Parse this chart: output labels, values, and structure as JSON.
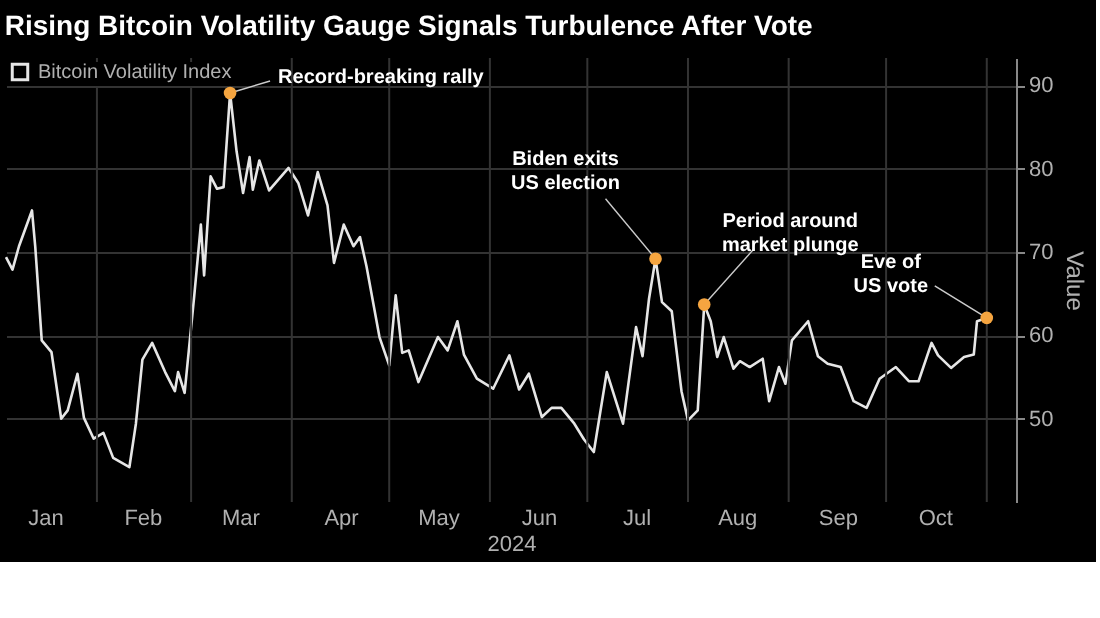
{
  "chart_data": {
    "type": "line",
    "title": "Rising Bitcoin Volatility Gauge Signals Turbulence After Vote",
    "xlabel": "2024",
    "ylabel": "Value",
    "legend": "top left",
    "grid": true,
    "marker": "none",
    "line_style": "solid",
    "xlim": [
      "2024-01-04",
      "2024-11-10"
    ],
    "ylim": [
      40,
      93.3
    ],
    "yticks": [
      50,
      60,
      70,
      80,
      90
    ],
    "xticks": [
      {
        "value": "2024-02-01",
        "label": null
      },
      {
        "value": "2024-03-01",
        "label": null
      },
      {
        "value": "2024-04-01",
        "label": null
      },
      {
        "value": "2024-05-01",
        "label": null
      },
      {
        "value": "2024-06-01",
        "label": null
      },
      {
        "value": "2024-07-01",
        "label": null
      },
      {
        "value": "2024-08-01",
        "label": null
      },
      {
        "value": "2024-09-01",
        "label": null
      },
      {
        "value": "2024-10-01",
        "label": null
      },
      {
        "value": "2024-11-01",
        "label": null
      },
      {
        "value": "2024-01-16",
        "label": "Jan"
      },
      {
        "value": "2024-02-15",
        "label": "Feb"
      },
      {
        "value": "2024-03-16",
        "label": "Mar"
      },
      {
        "value": "2024-04-16",
        "label": "Apr"
      },
      {
        "value": "2024-05-16",
        "label": "May"
      },
      {
        "value": "2024-06-16",
        "label": "Jun"
      },
      {
        "value": "2024-07-16",
        "label": "Jul"
      },
      {
        "value": "2024-08-16",
        "label": "Aug"
      },
      {
        "value": "2024-09-16",
        "label": "Sep"
      },
      {
        "value": "2024-10-16",
        "label": "Oct"
      }
    ],
    "x": [
      "2024-01-04",
      "2024-01-06",
      "2024-01-08",
      "2024-01-12",
      "2024-01-13",
      "2024-01-15",
      "2024-01-18",
      "2024-01-21",
      "2024-01-23",
      "2024-01-26",
      "2024-01-28",
      "2024-01-31",
      "2024-02-03",
      "2024-02-06",
      "2024-02-11",
      "2024-02-13",
      "2024-02-15",
      "2024-02-18",
      "2024-02-22",
      "2024-02-25",
      "2024-02-26",
      "2024-02-28",
      "2024-03-02",
      "2024-03-04",
      "2024-03-05",
      "2024-03-07",
      "2024-03-09",
      "2024-03-11",
      "2024-03-13",
      "2024-03-15",
      "2024-03-17",
      "2024-03-19",
      "2024-03-20",
      "2024-03-22",
      "2024-03-25",
      "2024-03-31",
      "2024-04-03",
      "2024-04-06",
      "2024-04-09",
      "2024-04-12",
      "2024-04-14",
      "2024-04-17",
      "2024-04-20",
      "2024-04-22",
      "2024-04-24",
      "2024-04-28",
      "2024-05-01",
      "2024-05-03",
      "2024-05-05",
      "2024-05-07",
      "2024-05-10",
      "2024-05-16",
      "2024-05-19",
      "2024-05-22",
      "2024-05-24",
      "2024-05-28",
      "2024-06-02",
      "2024-06-07",
      "2024-06-10",
      "2024-06-13",
      "2024-06-17",
      "2024-06-20",
      "2024-06-23",
      "2024-06-27",
      "2024-06-30",
      "2024-07-03",
      "2024-07-07",
      "2024-07-12",
      "2024-07-16",
      "2024-07-18",
      "2024-07-20",
      "2024-07-22",
      "2024-07-24",
      "2024-07-27",
      "2024-07-30",
      "2024-08-01",
      "2024-08-04",
      "2024-08-06",
      "2024-08-08",
      "2024-08-10",
      "2024-08-12",
      "2024-08-15",
      "2024-08-17",
      "2024-08-20",
      "2024-08-24",
      "2024-08-26",
      "2024-08-29",
      "2024-08-31",
      "2024-09-02",
      "2024-09-07",
      "2024-09-10",
      "2024-09-13",
      "2024-09-17",
      "2024-09-21",
      "2024-09-25",
      "2024-09-29",
      "2024-10-04",
      "2024-10-08",
      "2024-10-11",
      "2024-10-15",
      "2024-10-17",
      "2024-10-21",
      "2024-10-25",
      "2024-10-28",
      "2024-10-29",
      "2024-11-01"
    ],
    "series": [
      {
        "name": "Bitcoin Volatility Index",
        "color": "#e6e6e6",
        "values": [
          69.4,
          67.9,
          70.7,
          75,
          70.7,
          59.4,
          58,
          50,
          51,
          55.4,
          50.1,
          47.6,
          48.3,
          45.3,
          44.2,
          49.4,
          57.1,
          59.1,
          55.6,
          53.3,
          55.6,
          53.1,
          64.9,
          73.3,
          67.2,
          79.1,
          77.6,
          77.8,
          89.1,
          82.1,
          77.1,
          81.4,
          77.5,
          81,
          77.4,
          80.1,
          78.3,
          74.4,
          79.6,
          75.6,
          68.7,
          73.3,
          70.7,
          71.8,
          68.3,
          59.8,
          56.4,
          64.8,
          57.9,
          58.2,
          54.4,
          59.8,
          58.2,
          61.7,
          57.7,
          54.8,
          53.6,
          57.6,
          53.5,
          55.4,
          50.2,
          51.3,
          51.3,
          49.4,
          47.5,
          46,
          55.6,
          49.4,
          61,
          57.5,
          64.4,
          69.2,
          64,
          62.9,
          53.3,
          49.8,
          51,
          63.7,
          61.7,
          57.4,
          59.8,
          56,
          56.9,
          56.2,
          57.2,
          52.1,
          56.2,
          54.2,
          59.4,
          61.7,
          57.5,
          56.6,
          56.2,
          52.1,
          51.3,
          54.8,
          56.2,
          54.5,
          54.5,
          59.1,
          57.6,
          56.1,
          57.4,
          57.7,
          61.7,
          62.1
        ]
      }
    ],
    "annotations": [
      {
        "text": "Record-breaking rally",
        "x": "2024-03-13",
        "y": 89.1
      },
      {
        "text": "Biden exits\nUS election",
        "x": "2024-07-22",
        "y": 69.2
      },
      {
        "text": "Period around\nmarket plunge",
        "x": "2024-08-06",
        "y": 63.7
      },
      {
        "text": "Eve of\nUS vote",
        "x": "2024-11-01",
        "y": 62.1
      }
    ]
  }
}
